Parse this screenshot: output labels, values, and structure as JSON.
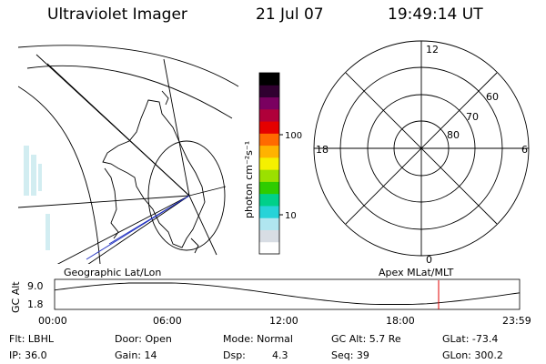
{
  "header": {
    "title": "Ultraviolet Imager",
    "date": "21 Jul 07",
    "time": "19:49:14 UT"
  },
  "geo_map": {
    "label": "Geographic Lat/Lon"
  },
  "colorbar": {
    "unit_label": "photon cm⁻²s⁻¹",
    "ticks": [
      "100",
      "10"
    ],
    "colors": [
      "#ffffff",
      "#d8dde4",
      "#b0e6f0",
      "#27d3d8",
      "#00d08a",
      "#2ecc00",
      "#9be000",
      "#f5f000",
      "#ffb300",
      "#ff6a00",
      "#e50000",
      "#b0003a",
      "#7a0060",
      "#300030",
      "#000000"
    ]
  },
  "polar_map": {
    "label": "Apex MLat/MLT",
    "mlt_labels": [
      "12",
      "18",
      "6",
      "0"
    ],
    "lat_labels": [
      "60",
      "70",
      "80"
    ]
  },
  "timeline": {
    "ylabel": "GC Alt",
    "yticks": [
      "9.0",
      "1.8"
    ],
    "xticks": [
      "00:00",
      "06:00",
      "12:00",
      "18:00",
      "23:59"
    ],
    "current_time_hours": 19.82,
    "marker_color": "#e00000"
  },
  "info": {
    "filter": "Flt: LBHL",
    "ip": "IP: 36.0",
    "door": "Door: Open",
    "gain": "Gain: 14",
    "mode": "Mode: Normal",
    "dsp_label": "Dsp:",
    "dsp_value": "4.3",
    "gc_alt": "GC Alt: 5.7 Re",
    "seq": "Seq: 39",
    "glat": "GLat: -73.4",
    "glon": "GLon: 300.2"
  }
}
